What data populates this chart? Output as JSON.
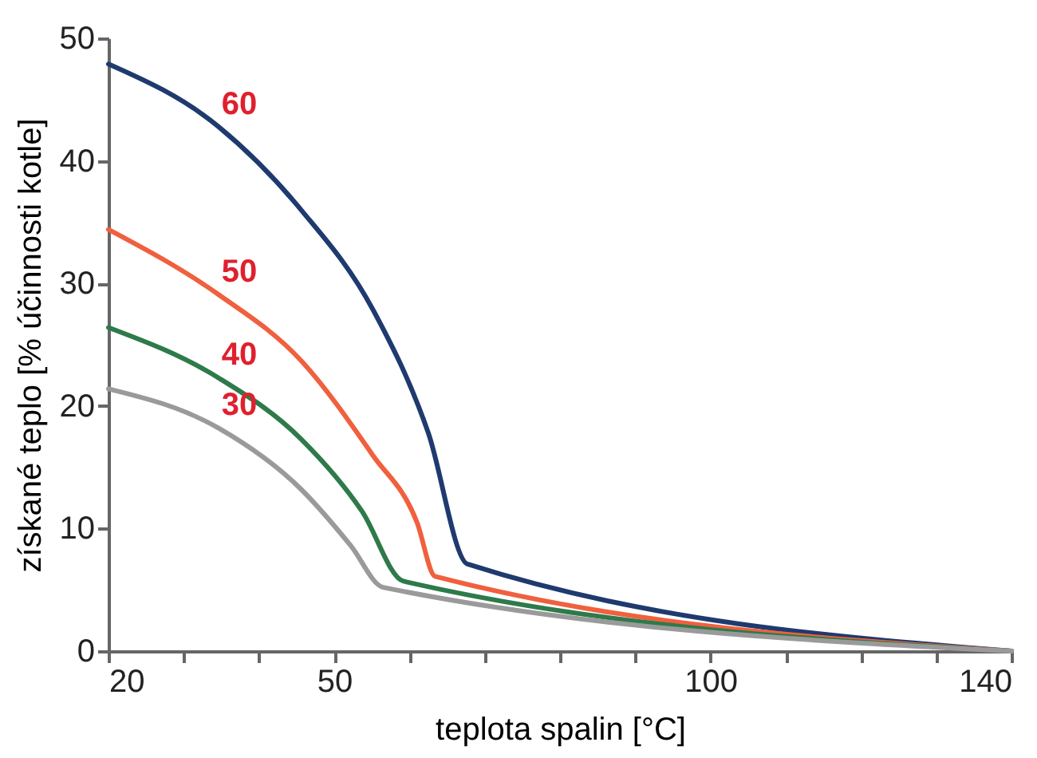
{
  "chart_data": {
    "type": "line",
    "xlabel": "teplota spalin [°C]",
    "ylabel": "získané teplo [% účinnosti kotle]",
    "xlim": [
      20,
      140
    ],
    "ylim": [
      0,
      50
    ],
    "xticks": [
      20,
      {
        "value": 30,
        "label": null
      },
      {
        "value": 40,
        "label": null
      },
      50,
      {
        "value": 60,
        "label": null
      },
      {
        "value": 70,
        "label": null
      },
      {
        "value": 80,
        "label": null
      },
      {
        "value": 90,
        "label": null
      },
      100,
      {
        "value": 110,
        "label": null
      },
      {
        "value": 120,
        "label": null
      },
      {
        "value": 130,
        "label": null
      },
      140
    ],
    "yticks": [
      0,
      10,
      20,
      30,
      40,
      50
    ],
    "grid": false,
    "legend": false,
    "marker": "none",
    "line_style": "solid",
    "series": [
      {
        "name": "60",
        "color": "#1f3a6e",
        "x": [
          20,
          34.6,
          45.6,
          55.2,
          62.5,
          67.7,
          140
        ],
        "values": [
          47.9,
          42.8,
          36,
          27.8,
          17.8,
          7.1,
          0
        ]
      },
      {
        "name": "50",
        "color": "#f0603e",
        "x": [
          20,
          34.6,
          45.6,
          55.1,
          61,
          63.4,
          140
        ],
        "values": [
          34.4,
          29.1,
          23.7,
          16,
          10.5,
          6.1,
          0
        ]
      },
      {
        "name": "40",
        "color": "#2e7a4a",
        "x": [
          20,
          34.6,
          45.6,
          53.7,
          59.2,
          140
        ],
        "values": [
          26.4,
          22.3,
          17.3,
          11.4,
          5.7,
          0
        ]
      },
      {
        "name": "30",
        "color": "#9a9a9a",
        "x": [
          20,
          34.6,
          45.6,
          52.2,
          56.5,
          140
        ],
        "values": [
          21.4,
          18.2,
          13.2,
          8.6,
          5.2,
          0
        ]
      }
    ]
  }
}
